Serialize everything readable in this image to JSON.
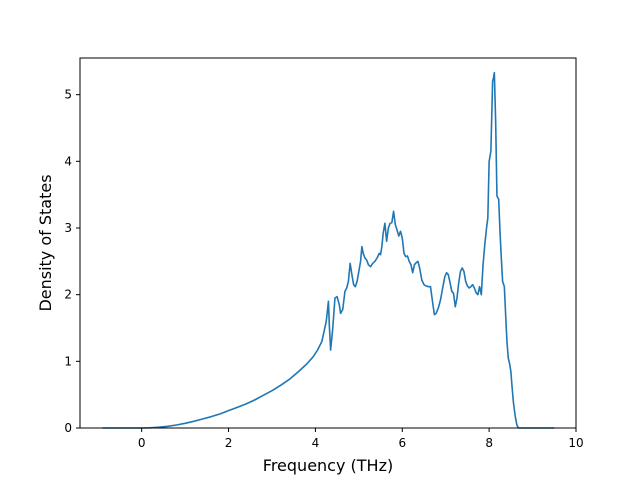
{
  "chart_data": {
    "type": "line",
    "xlabel": "Frequency (THz)",
    "ylabel": "Density of States",
    "xlim": [
      -1.42,
      10.0
    ],
    "ylim": [
      0,
      5.55
    ],
    "x_ticks": [
      0,
      2,
      4,
      6,
      8,
      10
    ],
    "y_ticks": [
      0,
      1,
      2,
      3,
      4,
      5
    ],
    "grid": false,
    "series": [
      {
        "color": "#1f77b4",
        "points": [
          [
            -0.9,
            0
          ],
          [
            0,
            0
          ],
          [
            0.2,
            0.003
          ],
          [
            0.4,
            0.012
          ],
          [
            0.6,
            0.025
          ],
          [
            0.8,
            0.045
          ],
          [
            1.0,
            0.07
          ],
          [
            1.2,
            0.1
          ],
          [
            1.4,
            0.135
          ],
          [
            1.6,
            0.17
          ],
          [
            1.8,
            0.21
          ],
          [
            2.0,
            0.26
          ],
          [
            2.2,
            0.31
          ],
          [
            2.4,
            0.36
          ],
          [
            2.6,
            0.42
          ],
          [
            2.8,
            0.49
          ],
          [
            3.0,
            0.56
          ],
          [
            3.2,
            0.64
          ],
          [
            3.4,
            0.73
          ],
          [
            3.6,
            0.84
          ],
          [
            3.8,
            0.96
          ],
          [
            3.95,
            1.07
          ],
          [
            4.05,
            1.17
          ],
          [
            4.15,
            1.3
          ],
          [
            4.2,
            1.45
          ],
          [
            4.25,
            1.6
          ],
          [
            4.3,
            1.9
          ],
          [
            4.32,
            1.55
          ],
          [
            4.35,
            1.17
          ],
          [
            4.4,
            1.5
          ],
          [
            4.45,
            1.95
          ],
          [
            4.5,
            1.97
          ],
          [
            4.55,
            1.85
          ],
          [
            4.58,
            1.72
          ],
          [
            4.63,
            1.78
          ],
          [
            4.68,
            2.05
          ],
          [
            4.72,
            2.1
          ],
          [
            4.76,
            2.2
          ],
          [
            4.8,
            2.47
          ],
          [
            4.84,
            2.3
          ],
          [
            4.88,
            2.15
          ],
          [
            4.92,
            2.12
          ],
          [
            4.96,
            2.2
          ],
          [
            5.0,
            2.35
          ],
          [
            5.04,
            2.5
          ],
          [
            5.07,
            2.72
          ],
          [
            5.1,
            2.62
          ],
          [
            5.14,
            2.55
          ],
          [
            5.18,
            2.52
          ],
          [
            5.22,
            2.45
          ],
          [
            5.27,
            2.42
          ],
          [
            5.32,
            2.47
          ],
          [
            5.37,
            2.5
          ],
          [
            5.42,
            2.55
          ],
          [
            5.47,
            2.62
          ],
          [
            5.5,
            2.6
          ],
          [
            5.53,
            2.72
          ],
          [
            5.56,
            2.92
          ],
          [
            5.6,
            3.07
          ],
          [
            5.64,
            2.8
          ],
          [
            5.68,
            3.0
          ],
          [
            5.72,
            3.07
          ],
          [
            5.76,
            3.08
          ],
          [
            5.8,
            3.25
          ],
          [
            5.84,
            3.05
          ],
          [
            5.88,
            2.97
          ],
          [
            5.92,
            2.88
          ],
          [
            5.96,
            2.95
          ],
          [
            6.0,
            2.85
          ],
          [
            6.04,
            2.62
          ],
          [
            6.08,
            2.57
          ],
          [
            6.12,
            2.58
          ],
          [
            6.16,
            2.5
          ],
          [
            6.2,
            2.45
          ],
          [
            6.24,
            2.33
          ],
          [
            6.28,
            2.45
          ],
          [
            6.32,
            2.48
          ],
          [
            6.36,
            2.5
          ],
          [
            6.4,
            2.4
          ],
          [
            6.45,
            2.22
          ],
          [
            6.5,
            2.15
          ],
          [
            6.55,
            2.13
          ],
          [
            6.6,
            2.12
          ],
          [
            6.65,
            2.12
          ],
          [
            6.7,
            1.88
          ],
          [
            6.74,
            1.7
          ],
          [
            6.78,
            1.72
          ],
          [
            6.83,
            1.8
          ],
          [
            6.88,
            1.92
          ],
          [
            6.93,
            2.1
          ],
          [
            6.98,
            2.27
          ],
          [
            7.02,
            2.33
          ],
          [
            7.06,
            2.3
          ],
          [
            7.1,
            2.18
          ],
          [
            7.14,
            2.05
          ],
          [
            7.18,
            2.02
          ],
          [
            7.22,
            1.82
          ],
          [
            7.26,
            1.95
          ],
          [
            7.3,
            2.18
          ],
          [
            7.34,
            2.35
          ],
          [
            7.38,
            2.4
          ],
          [
            7.42,
            2.35
          ],
          [
            7.46,
            2.2
          ],
          [
            7.5,
            2.13
          ],
          [
            7.54,
            2.1
          ],
          [
            7.58,
            2.12
          ],
          [
            7.62,
            2.15
          ],
          [
            7.66,
            2.1
          ],
          [
            7.7,
            2.03
          ],
          [
            7.74,
            2.0
          ],
          [
            7.78,
            2.12
          ],
          [
            7.82,
            2.0
          ],
          [
            7.86,
            2.45
          ],
          [
            7.9,
            2.75
          ],
          [
            7.94,
            3.0
          ],
          [
            7.97,
            3.15
          ],
          [
            8.0,
            4.0
          ],
          [
            8.04,
            4.15
          ],
          [
            8.08,
            5.2
          ],
          [
            8.1,
            5.25
          ],
          [
            8.12,
            5.33
          ],
          [
            8.15,
            4.6
          ],
          [
            8.18,
            3.48
          ],
          [
            8.22,
            3.43
          ],
          [
            8.25,
            2.95
          ],
          [
            8.28,
            2.55
          ],
          [
            8.31,
            2.2
          ],
          [
            8.35,
            2.12
          ],
          [
            8.38,
            1.7
          ],
          [
            8.41,
            1.3
          ],
          [
            8.44,
            1.05
          ],
          [
            8.47,
            0.97
          ],
          [
            8.5,
            0.85
          ],
          [
            8.53,
            0.6
          ],
          [
            8.56,
            0.38
          ],
          [
            8.6,
            0.18
          ],
          [
            8.64,
            0.04
          ],
          [
            8.68,
            0
          ],
          [
            9.0,
            0
          ],
          [
            9.5,
            0
          ]
        ]
      }
    ]
  }
}
